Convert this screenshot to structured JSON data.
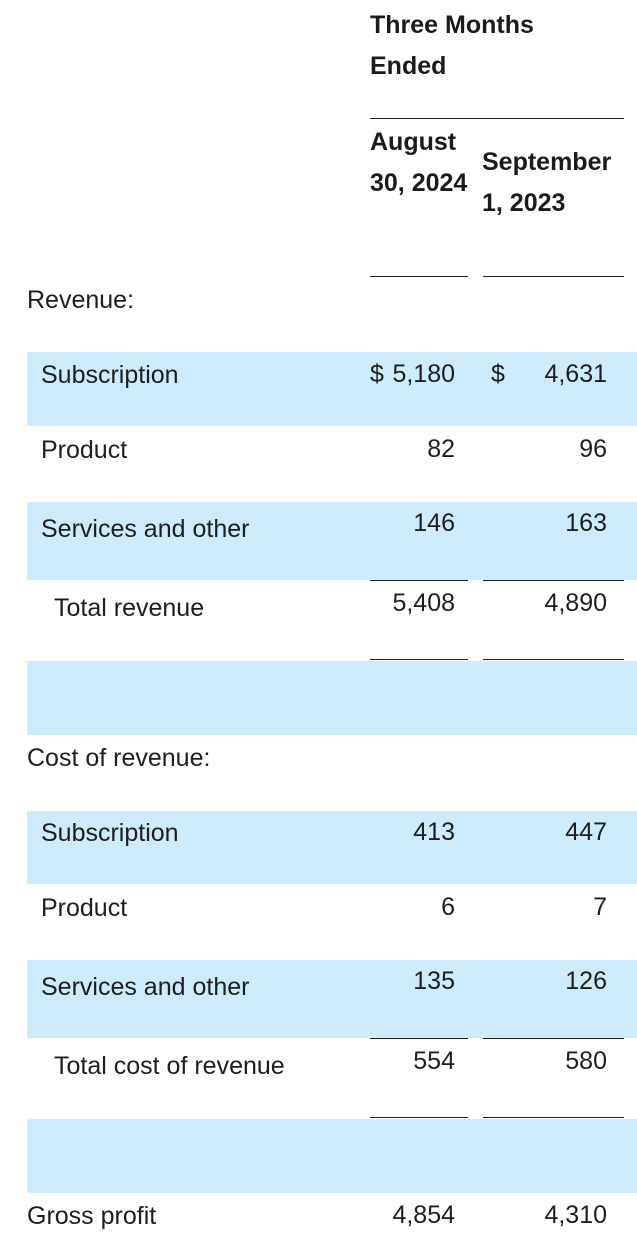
{
  "header": {
    "period_title": "Three Months Ended",
    "col1": "August 30, 2024",
    "col2": "September 1, 2023"
  },
  "currency_symbol": "$",
  "sections": {
    "revenue": {
      "title": "Revenue:",
      "rows": [
        {
          "label": "Subscription",
          "v1": "5,180",
          "v2": "4,631"
        },
        {
          "label": "Product",
          "v1": "82",
          "v2": "96"
        },
        {
          "label": "Services and other",
          "v1": "146",
          "v2": "163"
        }
      ],
      "total": {
        "label": "Total revenue",
        "v1": "5,408",
        "v2": "4,890"
      }
    },
    "cost": {
      "title": "Cost of revenue:",
      "rows": [
        {
          "label": "Subscription",
          "v1": "413",
          "v2": "447"
        },
        {
          "label": "Product",
          "v1": "6",
          "v2": "7"
        },
        {
          "label": "Services and other",
          "v1": "135",
          "v2": "126"
        }
      ],
      "total": {
        "label": "Total cost of revenue",
        "v1": "554",
        "v2": "580"
      }
    }
  },
  "gross_profit": {
    "label": "Gross profit",
    "v1": "4,854",
    "v2": "4,310"
  },
  "colors": {
    "band": "#cdebfb",
    "text": "#1e1e1e"
  }
}
